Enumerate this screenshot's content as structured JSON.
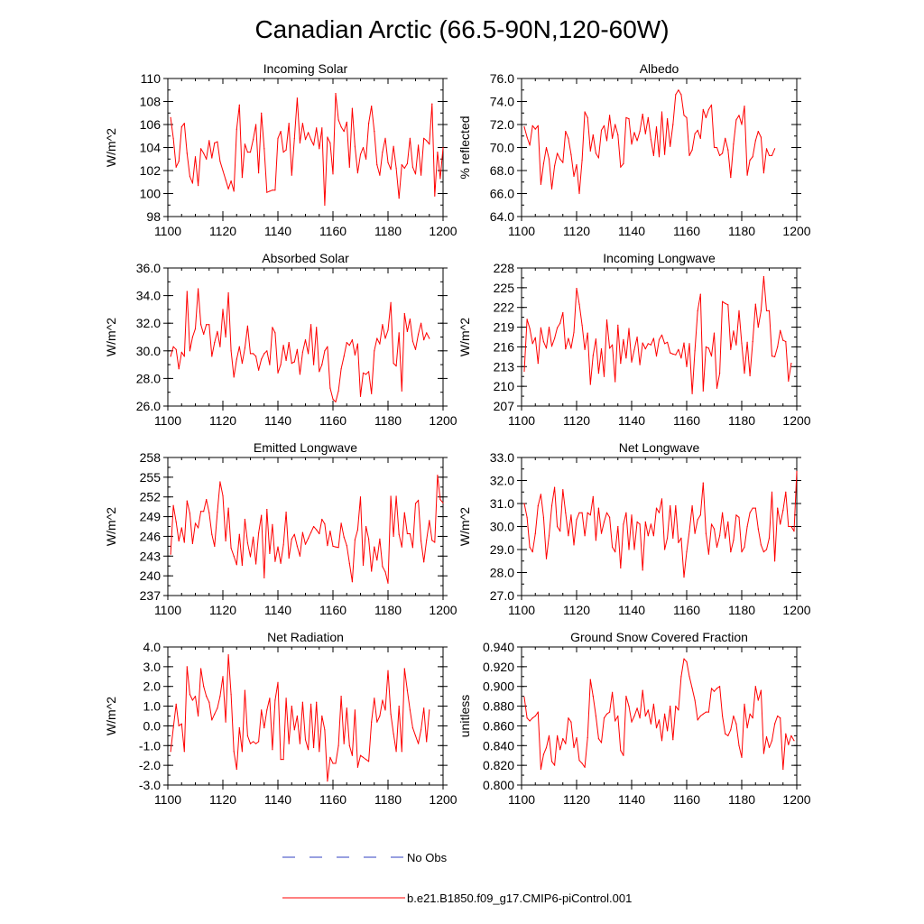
{
  "figure": {
    "title": "Canadian Arctic (66.5-90N,120-60W)",
    "legend": {
      "no_obs_label": "No Obs",
      "model_label": "b.e21.B1850.f09_g17.CMIP6-piControl.001",
      "no_obs_color": "#3040c0",
      "model_color": "#ff0000"
    }
  },
  "chart_data": [
    {
      "type": "line",
      "title": "Incoming Solar",
      "ylabel": "W/m^2",
      "xlim": [
        1100,
        1200
      ],
      "ylim": [
        98,
        110
      ],
      "xticks": [
        1100,
        1120,
        1140,
        1160,
        1180,
        1200
      ],
      "yticks": [
        98,
        100,
        102,
        104,
        106,
        108,
        110
      ],
      "ydecimals": 0,
      "series": [
        {
          "name": "b.e21.B1850.f09_g17.CMIP6-piControl.001",
          "color": "#ff0000",
          "x_start": 1101,
          "values": [
            106.6,
            104.8,
            102.3,
            102.8,
            105.8,
            106.1,
            103.5,
            101.5,
            100.9,
            103.2,
            100.7,
            103.9,
            103.5,
            103.0,
            104.6,
            103.1,
            104.4,
            104.5,
            102.8,
            102.0,
            101.2,
            100.4,
            101.1,
            100.2,
            105.6,
            107.7,
            101.4,
            104.3,
            103.6,
            103.6,
            104.7,
            106.0,
            101.8,
            107.0,
            103.9,
            100.1,
            100.2,
            100.3,
            100.3,
            104.8,
            105.4,
            103.6,
            103.8,
            106.1,
            101.6,
            104.8,
            108.3,
            104.4,
            106.1,
            104.7,
            105.3,
            104.7,
            104.2,
            105.7,
            103.9,
            105.7,
            99.0,
            104.9,
            104.4,
            101.7,
            108.7,
            106.4,
            105.8,
            105.4,
            106.2,
            102.3,
            107.4,
            104.1,
            101.8,
            103.4,
            104.0,
            103.0,
            106.1,
            107.6,
            105.4,
            102.5,
            101.6,
            103.6,
            104.8,
            102.7,
            102.1,
            104.1,
            102.2,
            99.6,
            102.5,
            102.2,
            102.6,
            104.8,
            102.3,
            101.7,
            104.2,
            101.6,
            104.8,
            104.6,
            104.3,
            107.8,
            99.8,
            103.6,
            101.3,
            104.0
          ]
        }
      ]
    },
    {
      "type": "line",
      "title": "Albedo",
      "ylabel": "% reflected",
      "xlim": [
        1100,
        1200
      ],
      "ylim": [
        64,
        76
      ],
      "xticks": [
        1100,
        1120,
        1140,
        1160,
        1180,
        1200
      ],
      "yticks": [
        64,
        66,
        68,
        70,
        72,
        74,
        76
      ],
      "ydecimals": 1,
      "series": [
        {
          "name": "b.e21.B1850.f09_g17.CMIP6-piControl.001",
          "color": "#ff0000",
          "x_start": 1101,
          "values": [
            71.8,
            70.9,
            70.2,
            71.9,
            71.6,
            71.9,
            66.8,
            68.6,
            70.0,
            69.0,
            66.4,
            68.4,
            69.5,
            69.0,
            68.7,
            71.4,
            70.8,
            69.4,
            67.5,
            68.5,
            66.0,
            68.9,
            73.1,
            72.6,
            69.7,
            71.1,
            69.5,
            69.1,
            71.5,
            71.9,
            70.6,
            72.8,
            70.8,
            72.0,
            71.1,
            68.3,
            68.6,
            72.6,
            72.5,
            70.3,
            71.3,
            70.6,
            71.4,
            72.9,
            71.2,
            72.6,
            70.7,
            69.3,
            71.8,
            69.2,
            73.1,
            69.4,
            72.5,
            70.1,
            72.0,
            74.6,
            75.0,
            74.6,
            72.8,
            72.6,
            69.3,
            69.8,
            71.2,
            71.5,
            70.8,
            73.3,
            72.6,
            73.3,
            73.7,
            70.0,
            70.0,
            69.3,
            69.5,
            70.8,
            69.8,
            67.4,
            70.3,
            72.4,
            72.8,
            72.0,
            73.6,
            67.6,
            68.9,
            69.2,
            70.6,
            71.4,
            70.9,
            67.8,
            69.9,
            69.3,
            69.3,
            69.9
          ]
        }
      ]
    },
    {
      "type": "line",
      "title": "Absorbed Solar",
      "ylabel": "W/m^2",
      "xlim": [
        1100,
        1200
      ],
      "ylim": [
        26,
        36
      ],
      "xticks": [
        1100,
        1120,
        1140,
        1160,
        1180,
        1200
      ],
      "yticks": [
        26,
        28,
        30,
        32,
        34,
        36
      ],
      "ydecimals": 1,
      "series": [
        {
          "name": "b.e21.B1850.f09_g17.CMIP6-piControl.001",
          "color": "#ff0000",
          "x_start": 1101,
          "values": [
            29.6,
            30.3,
            30.1,
            28.7,
            29.9,
            29.6,
            34.3,
            30.0,
            31.0,
            31.6,
            34.5,
            31.9,
            31.2,
            31.9,
            31.9,
            29.6,
            30.6,
            31.4,
            30.3,
            33.0,
            31.0,
            34.2,
            30.0,
            28.1,
            29.4,
            30.3,
            29.1,
            30.2,
            31.8,
            29.8,
            29.8,
            29.6,
            28.6,
            29.4,
            29.8,
            30.0,
            29.0,
            31.7,
            31.3,
            28.4,
            29.0,
            30.4,
            29.3,
            30.6,
            29.1,
            29.2,
            30.1,
            28.3,
            29.9,
            30.8,
            29.8,
            31.9,
            29.0,
            31.7,
            28.5,
            29.0,
            30.0,
            30.3,
            27.3,
            26.5,
            26.3,
            27.1,
            28.7,
            29.6,
            30.6,
            30.4,
            30.8,
            29.7,
            30.5,
            26.7,
            28.4,
            28.3,
            28.5,
            26.9,
            30.0,
            30.9,
            30.5,
            31.9,
            30.9,
            31.5,
            33.5,
            29.1,
            28.9,
            31.3,
            27.1,
            32.7,
            31.4,
            32.3,
            30.7,
            30.1,
            31.2,
            32.0,
            30.8,
            31.3,
            30.9
          ]
        }
      ]
    },
    {
      "type": "line",
      "title": "Incoming Longwave",
      "ylabel": "W/m^2",
      "xlim": [
        1100,
        1200
      ],
      "ylim": [
        207,
        228
      ],
      "xticks": [
        1100,
        1120,
        1140,
        1160,
        1180,
        1200
      ],
      "yticks": [
        207,
        210,
        213,
        216,
        219,
        222,
        225,
        228
      ],
      "ydecimals": 0,
      "series": [
        {
          "name": "b.e21.B1850.f09_g17.CMIP6-piControl.001",
          "color": "#ff0000",
          "x_start": 1101,
          "values": [
            212.3,
            220.2,
            218.8,
            216.5,
            217.4,
            213.5,
            218.9,
            216.8,
            215.8,
            219.0,
            216.1,
            217.3,
            218.9,
            219.6,
            221.2,
            215.7,
            217.3,
            215.8,
            218.2,
            224.9,
            222.5,
            219.3,
            215.6,
            218.1,
            210.3,
            214.7,
            217.2,
            212.0,
            215.7,
            211.5,
            220.1,
            215.8,
            216.3,
            210.7,
            219.3,
            213.5,
            217.1,
            214.3,
            218.8,
            213.7,
            215.6,
            217.5,
            213.3,
            216.6,
            215.7,
            216.5,
            216.3,
            217.3,
            214.6,
            217.1,
            217.8,
            216.5,
            216.7,
            215.1,
            214.9,
            214.8,
            215.6,
            214.3,
            216.6,
            213.0,
            216.5,
            208.9,
            215.4,
            221.5,
            224.0,
            209.3,
            216.0,
            215.8,
            214.6,
            218.1,
            209.7,
            212.0,
            222.9,
            222.6,
            222.4,
            215.6,
            218.4,
            216.3,
            221.5,
            216.5,
            212.0,
            216.7,
            211.6,
            216.8,
            222.5,
            219.0,
            221.5,
            226.7,
            221.5,
            221.5,
            214.6,
            214.5,
            216.0,
            218.5,
            217.0,
            216.8,
            210.8,
            213.5
          ]
        }
      ]
    },
    {
      "type": "line",
      "title": "Emitted Longwave",
      "ylabel": "W/m^2",
      "xlim": [
        1100,
        1200
      ],
      "ylim": [
        237,
        258
      ],
      "xticks": [
        1100,
        1120,
        1140,
        1160,
        1180,
        1200
      ],
      "yticks": [
        237,
        240,
        243,
        246,
        249,
        252,
        255,
        258
      ],
      "ydecimals": 0,
      "series": [
        {
          "name": "b.e21.B1850.f09_g17.CMIP6-piControl.001",
          "color": "#ff0000",
          "x_start": 1101,
          "values": [
            243.3,
            250.7,
            248.2,
            245.3,
            247.3,
            245.1,
            251.4,
            249.5,
            244.9,
            248.0,
            247.3,
            249.8,
            249.8,
            251.6,
            249.6,
            246.3,
            244.5,
            249.7,
            254.3,
            252.2,
            245.3,
            250.3,
            244.2,
            243.0,
            241.7,
            246.3,
            241.6,
            248.6,
            245.0,
            242.9,
            245.9,
            241.8,
            246.5,
            249.2,
            239.7,
            250.1,
            243.4,
            247.8,
            242.2,
            244.4,
            241.9,
            244.7,
            249.7,
            242.7,
            245.6,
            246.3,
            244.5,
            243.0,
            246.6,
            244.8,
            245.7,
            246.6,
            247.5,
            247.0,
            246.4,
            248.6,
            247.9,
            244.6,
            246.8,
            244.5,
            244.4,
            244.3,
            248.0,
            245.9,
            244.6,
            241.9,
            239.1,
            245.5,
            247.0,
            252.0,
            241.6,
            247.5,
            245.6,
            240.7,
            244.4,
            242.4,
            245.6,
            241.4,
            240.6,
            238.9,
            252.1,
            246.0,
            252.1,
            246.3,
            244.4,
            249.6,
            246.4,
            246.4,
            244.3,
            251.0,
            251.5,
            245.3,
            242.1,
            245.4,
            248.4,
            245.4,
            245.1,
            255.3,
            251.6,
            251.1
          ]
        }
      ]
    },
    {
      "type": "line",
      "title": "Net Longwave",
      "ylabel": "W/m^2",
      "xlim": [
        1100,
        1200
      ],
      "ylim": [
        27,
        33
      ],
      "xticks": [
        1100,
        1120,
        1140,
        1160,
        1180,
        1200
      ],
      "yticks": [
        27,
        28,
        29,
        30,
        31,
        32,
        33
      ],
      "ydecimals": 1,
      "series": [
        {
          "name": "b.e21.B1850.f09_g17.CMIP6-piControl.001",
          "color": "#ff0000",
          "x_start": 1101,
          "values": [
            31.0,
            30.4,
            29.1,
            28.9,
            29.7,
            30.9,
            31.4,
            30.4,
            28.6,
            29.6,
            30.9,
            31.7,
            30.0,
            29.8,
            31.6,
            30.6,
            29.6,
            30.5,
            29.2,
            30.3,
            30.6,
            30.6,
            29.6,
            30.6,
            30.5,
            31.3,
            29.4,
            30.8,
            29.7,
            30.2,
            30.6,
            30.4,
            29.1,
            28.9,
            30.0,
            28.2,
            30.1,
            30.6,
            29.0,
            30.5,
            29.0,
            30.2,
            30.1,
            28.1,
            30.2,
            29.6,
            30.1,
            29.6,
            30.8,
            30.6,
            31.2,
            29.0,
            29.5,
            30.9,
            29.5,
            30.9,
            29.3,
            29.5,
            27.8,
            28.9,
            29.8,
            30.9,
            29.7,
            30.3,
            30.5,
            31.9,
            29.7,
            28.8,
            30.1,
            29.9,
            29.1,
            29.6,
            30.6,
            29.5,
            30.2,
            28.9,
            29.4,
            30.5,
            30.4,
            28.9,
            29.1,
            30.0,
            30.6,
            30.8,
            30.8,
            29.9,
            29.2,
            28.9,
            29.0,
            29.5,
            31.5,
            28.5,
            30.8,
            30.1,
            30.7,
            31.5,
            30.0,
            30.0,
            29.8,
            32.4
          ]
        }
      ]
    },
    {
      "type": "line",
      "title": "Net Radiation",
      "ylabel": "W/m^2",
      "xlim": [
        1100,
        1200
      ],
      "ylim": [
        -3,
        4
      ],
      "xticks": [
        1100,
        1120,
        1140,
        1160,
        1180,
        1200
      ],
      "yticks": [
        -3,
        -2,
        -1,
        0,
        1,
        2,
        3,
        4
      ],
      "ydecimals": 1,
      "series": [
        {
          "name": "b.e21.B1850.f09_g17.CMIP6-piControl.001",
          "color": "#ff0000",
          "x_start": 1101,
          "values": [
            -1.3,
            -0.1,
            1.1,
            0.0,
            0.1,
            -1.3,
            3.0,
            1.6,
            1.3,
            1.5,
            0.5,
            2.9,
            2.0,
            1.5,
            1.2,
            0.3,
            0.6,
            0.9,
            1.5,
            2.5,
            0.2,
            3.6,
            1.6,
            -1.3,
            -2.2,
            -0.1,
            -1.3,
            1.8,
            -0.5,
            -0.9,
            -0.8,
            -0.9,
            -0.8,
            0.8,
            -0.1,
            0.8,
            1.4,
            -1.2,
            1.3,
            2.2,
            -1.7,
            -1.7,
            1.4,
            -0.9,
            1.0,
            -0.2,
            0.5,
            -0.9,
            1.2,
            -0.7,
            -1.2,
            1.1,
            -1.1,
            1.2,
            -1.3,
            0.5,
            -0.2,
            -2.8,
            -1.6,
            -1.9,
            -1.9,
            -1.0,
            1.5,
            -0.9,
            0.9,
            -1.0,
            -1.5,
            0.8,
            -2.1,
            -1.5,
            -1.6,
            -1.7,
            -1.8,
            0.2,
            1.4,
            0.2,
            0.5,
            1.3,
            0.8,
            2.8,
            0.6,
            -0.4,
            -1.3,
            1.0,
            -1.3,
            2.9,
            1.8,
            0.8,
            -0.1,
            -0.5,
            -0.9,
            -0.2,
            0.9,
            -0.8,
            0.8
          ]
        }
      ]
    },
    {
      "type": "line",
      "title": "Ground Snow Covered Fraction",
      "ylabel": "unitless",
      "xlim": [
        1100,
        1200
      ],
      "ylim": [
        0.8,
        0.94
      ],
      "xticks": [
        1100,
        1120,
        1140,
        1160,
        1180,
        1200
      ],
      "yticks": [
        0.8,
        0.82,
        0.84,
        0.86,
        0.88,
        0.9,
        0.92,
        0.94
      ],
      "ydecimals": 3,
      "series": [
        {
          "name": "b.e21.B1850.f09_g17.CMIP6-piControl.001",
          "color": "#ff0000",
          "x_start": 1101,
          "values": [
            0.889,
            0.868,
            0.865,
            0.868,
            0.87,
            0.874,
            0.816,
            0.831,
            0.838,
            0.85,
            0.824,
            0.82,
            0.85,
            0.836,
            0.847,
            0.842,
            0.868,
            0.864,
            0.838,
            0.848,
            0.825,
            0.822,
            0.818,
            0.848,
            0.907,
            0.89,
            0.87,
            0.847,
            0.843,
            0.868,
            0.872,
            0.874,
            0.894,
            0.865,
            0.87,
            0.835,
            0.83,
            0.89,
            0.88,
            0.864,
            0.87,
            0.878,
            0.868,
            0.896,
            0.87,
            0.876,
            0.862,
            0.882,
            0.858,
            0.866,
            0.845,
            0.872,
            0.855,
            0.88,
            0.846,
            0.88,
            0.876,
            0.91,
            0.928,
            0.925,
            0.91,
            0.898,
            0.886,
            0.866,
            0.87,
            0.872,
            0.874,
            0.874,
            0.898,
            0.895,
            0.898,
            0.9,
            0.87,
            0.852,
            0.85,
            0.856,
            0.87,
            0.862,
            0.84,
            0.828,
            0.882,
            0.858,
            0.872,
            0.868,
            0.9,
            0.886,
            0.896,
            0.832,
            0.849,
            0.838,
            0.845,
            0.862,
            0.87,
            0.868,
            0.816,
            0.852,
            0.841,
            0.85,
            0.845
          ]
        }
      ]
    }
  ]
}
